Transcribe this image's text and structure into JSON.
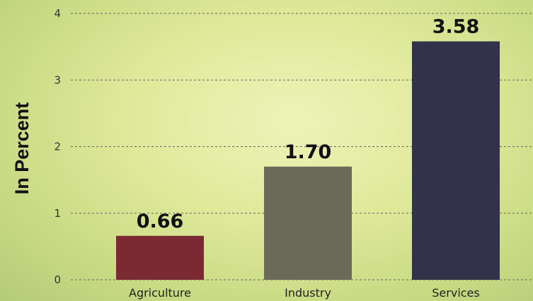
{
  "chart_data": {
    "type": "bar",
    "categories": [
      "Agriculture",
      "Industry",
      "Services"
    ],
    "values": [
      0.66,
      1.7,
      3.58
    ],
    "value_labels": [
      "0.66",
      "1.70",
      "3.58"
    ],
    "colors": [
      "#7b2a33",
      "#6b6a5a",
      "#32324a"
    ],
    "ylabel": "In Percent",
    "yticks": [
      "0",
      "1",
      "2",
      "3",
      "4"
    ],
    "ylim": [
      0,
      4
    ],
    "grid": true
  }
}
